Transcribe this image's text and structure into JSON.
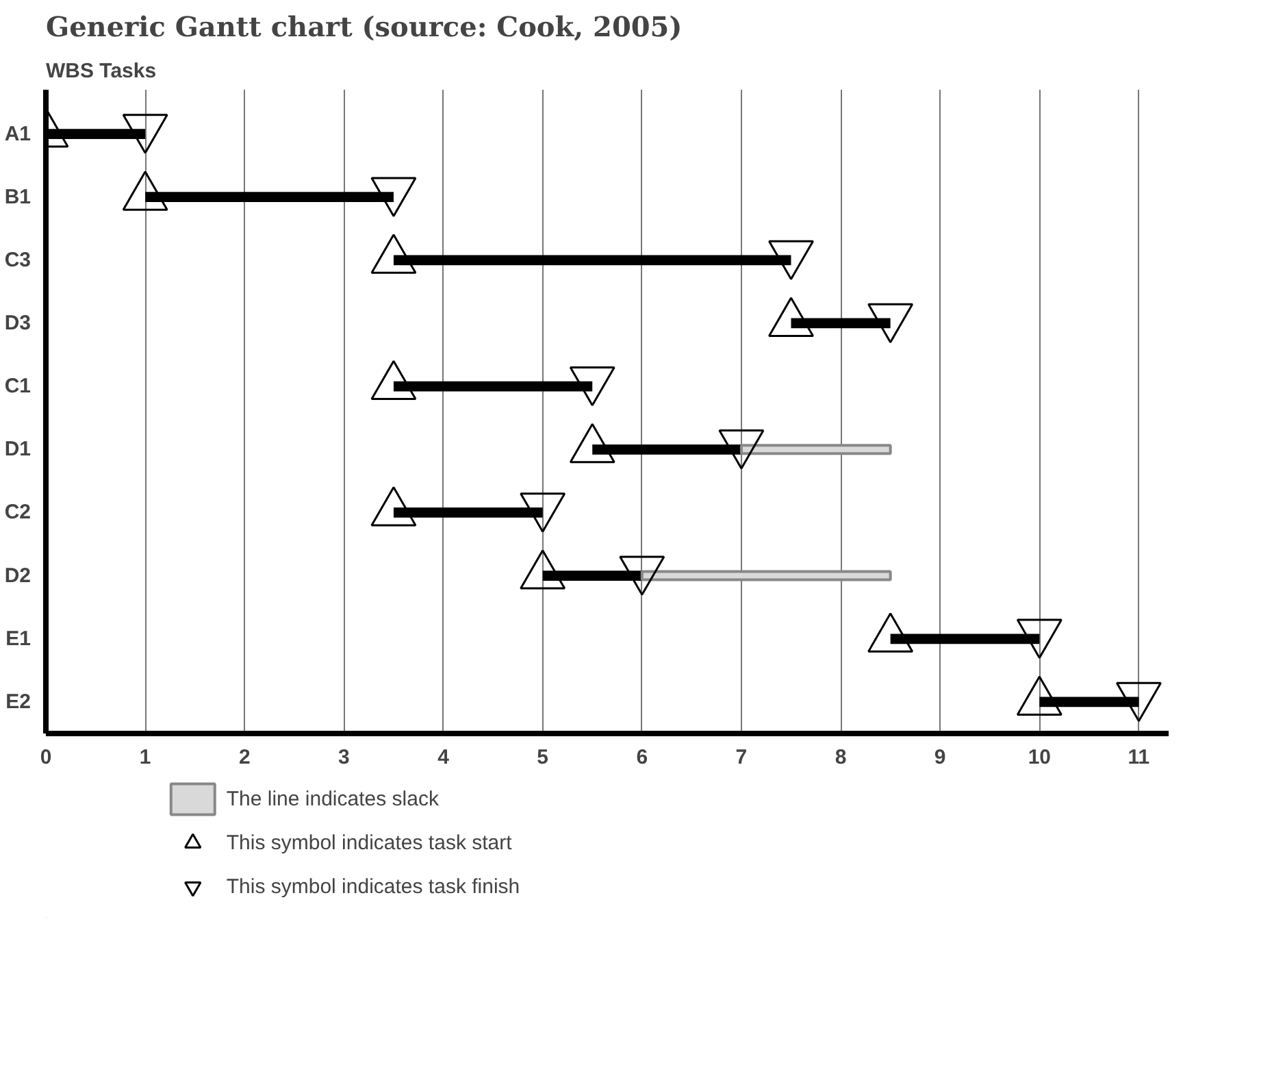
{
  "chart_data": {
    "type": "bar",
    "orientation": "horizontal",
    "title": "Generic Gantt chart (source: Cook, 2005)",
    "ylabel": "WBS Tasks",
    "categories": [
      "A1",
      "B1",
      "C3",
      "D3",
      "C1",
      "D1",
      "C2",
      "D2",
      "E1",
      "E2"
    ],
    "series": [
      {
        "color": "#000000",
        "base": [
          0,
          1,
          3.5,
          7.5,
          3.5,
          5.5,
          3.5,
          5,
          8.5,
          10
        ],
        "values": [
          1,
          2.5,
          4,
          1,
          2,
          1.5,
          1.5,
          1,
          1.5,
          1
        ]
      },
      {
        "name": "The line indicates slack",
        "color": "#d9d9d9",
        "base": [
          null,
          null,
          null,
          null,
          null,
          7,
          null,
          6,
          null,
          null
        ],
        "values": [
          null,
          null,
          null,
          null,
          null,
          1.5,
          null,
          2.5,
          null,
          null
        ]
      },
      {
        "type": "scatter",
        "name": "This symbol indicates task start",
        "color": "#000000",
        "marker": "triangle",
        "values": [
          0,
          1,
          3.5,
          7.5,
          3.5,
          5.5,
          3.5,
          5,
          8.5,
          10
        ]
      },
      {
        "type": "scatter",
        "name": "This symbol indicates task finish",
        "color": "#000000",
        "marker": "triangle-down",
        "values": [
          1,
          3.5,
          7.5,
          8.5,
          5.5,
          7,
          5,
          6,
          10,
          11
        ]
      }
    ],
    "xlim": [
      0,
      11.3
    ],
    "xticks": [
      0,
      1,
      2,
      3,
      4,
      5,
      6,
      7,
      8,
      9,
      10,
      11
    ],
    "grid": "x",
    "legend": "bottom"
  }
}
